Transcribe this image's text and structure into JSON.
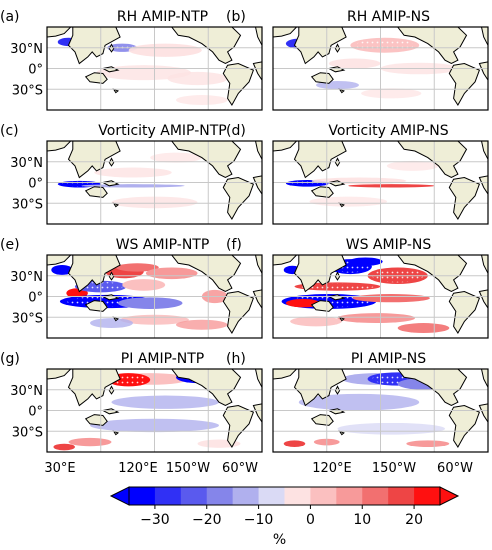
{
  "figure": {
    "panels": [
      {
        "letter": "(a)",
        "title": "RH AMIP-NTP"
      },
      {
        "letter": "(b)",
        "title": "RH AMIP-NS"
      },
      {
        "letter": "(c)",
        "title": "Vorticity AMIP-NTP"
      },
      {
        "letter": "(d)",
        "title": "Vorticity AMIP-NS"
      },
      {
        "letter": "(e)",
        "title": "WS AMIP-NTP"
      },
      {
        "letter": "(f)",
        "title": "WS AMIP-NS"
      },
      {
        "letter": "(g)",
        "title": "PI AMIP-NTP"
      },
      {
        "letter": "(h)",
        "title": "PI AMIP-NS"
      }
    ],
    "lat_ticks": [
      "30°N",
      "0°",
      "30°S"
    ],
    "lon_ticks_left": [
      "30°E",
      "120°E",
      "150°W",
      "60°W"
    ],
    "lon_ticks_right": [
      "120°E",
      "150°W",
      "60°W"
    ]
  },
  "chart_data": {
    "type": "heatmap",
    "colorbar": {
      "label": "%",
      "ticks": [
        -30,
        -20,
        -10,
        0,
        10,
        20
      ],
      "tick_labels": [
        "−30",
        "−20",
        "−10",
        "0",
        "10",
        "20"
      ],
      "range": [
        -35,
        25
      ],
      "extend": "both",
      "colors": [
        "#0000ff",
        "#3030f5",
        "#5a5aee",
        "#8585ea",
        "#b0b0ee",
        "#dadaf5",
        "#fde2e2",
        "#fbc0c0",
        "#f79a9a",
        "#f27070",
        "#ee4545",
        "#ff1010"
      ]
    },
    "colors": {
      "land": "#efeed7",
      "ocean": "#ffffff",
      "grid": "#c8c8c8",
      "coast": "#000000"
    }
  }
}
